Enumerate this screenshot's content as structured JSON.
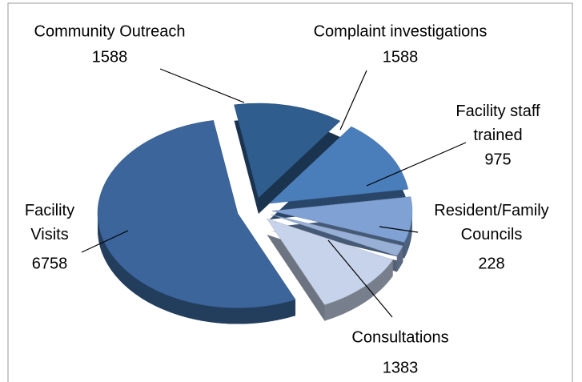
{
  "chart_data": {
    "type": "pie",
    "categories": [
      "Community Outreach",
      "Complaint  investigations",
      "Facility staff\ntrained",
      "Resident/Family\nCouncils",
      "Consultations",
      "Facility\nVisits"
    ],
    "values": [
      1588,
      1588,
      975,
      228,
      1383,
      6758
    ],
    "colors": [
      "#2f5d8e",
      "#4a7ebb",
      "#7fa1d4",
      "#98afd6",
      "#c6d3ea",
      "#3b659b"
    ]
  }
}
